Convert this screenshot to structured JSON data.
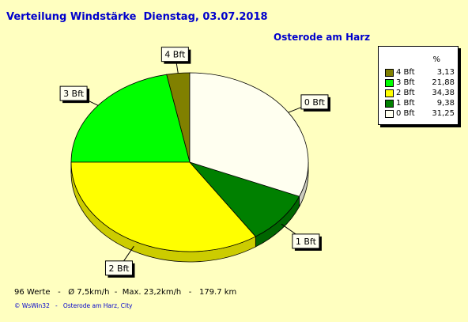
{
  "header": {
    "title": "Verteilung Windstärke  Dienstag, 03.07.2018",
    "location": "Osterode am Harz"
  },
  "legend": {
    "percent_header": "%"
  },
  "footer": {
    "stats": "96 Werte   -   Ø 7,5km/h  -  Max. 23,2km/h   -   179.7 km",
    "copyright": "© WsWin32   -   Osterode am Harz, City"
  },
  "chart_data": {
    "type": "pie",
    "title": "Verteilung Windstärke  Dienstag, 03.07.2018",
    "slices": [
      {
        "label": "4 Bft",
        "value": 3.13,
        "value_text": "3,13",
        "color": "#808000"
      },
      {
        "label": "3 Bft",
        "value": 21.88,
        "value_text": "21,88",
        "color": "#00FF00"
      },
      {
        "label": "2 Bft",
        "value": 34.38,
        "value_text": "34,38",
        "color": "#FFFF00"
      },
      {
        "label": "1 Bft",
        "value": 9.38,
        "value_text": "9,38",
        "color": "#008000"
      },
      {
        "label": "0 Bft",
        "value": 31.25,
        "value_text": "31,25",
        "color": "#FFFFF0"
      }
    ],
    "start_angle_deg": 90,
    "direction": "counterclockwise",
    "legend_position": "right"
  }
}
